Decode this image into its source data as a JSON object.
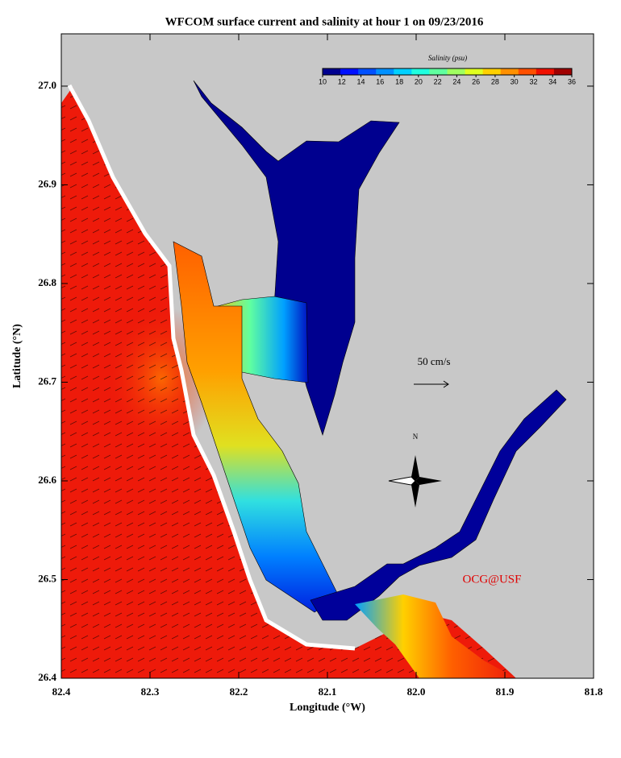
{
  "title": "WFCOM surface current and salinity at hour 1 on 09/23/2016",
  "x_axis": {
    "label": "Longitude (°W)",
    "lim": [
      82.4,
      81.8
    ],
    "ticks": [
      82.4,
      82.3,
      82.2,
      82.1,
      {
        "value": 82,
        "label": "82.0"
      },
      81.9,
      81.8
    ]
  },
  "y_axis": {
    "label": "Latitude (°N)",
    "lim": [
      26.4,
      27.053
    ],
    "ticks": [
      26.4,
      26.5,
      26.6,
      26.7,
      26.8,
      26.9,
      {
        "value": 27,
        "label": "27.0"
      }
    ]
  },
  "colorbar": {
    "label": "Salinity (psu)",
    "lim": [
      10,
      36
    ],
    "ticks": [
      10,
      12,
      14,
      16,
      18,
      20,
      22,
      24,
      26,
      28,
      30,
      32,
      34,
      36
    ],
    "colors": [
      "#00008f",
      "#0010ff",
      "#0050ff",
      "#0090ff",
      "#00d0ff",
      "#20ffdf",
      "#60ff9f",
      "#a0ff60",
      "#e0ff20",
      "#ffd000",
      "#ff9000",
      "#ff5000",
      "#f01000",
      "#a00000"
    ]
  },
  "annotations": {
    "scale": "50 cm/s",
    "north": "N",
    "credit": "OCG@USF"
  }
}
